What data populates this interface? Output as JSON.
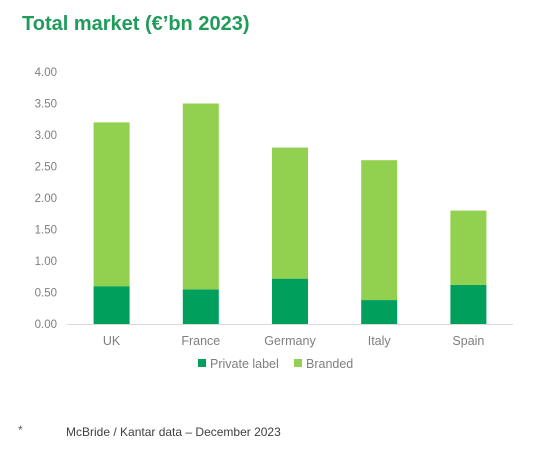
{
  "title": "Total market (€’bn 2023)",
  "colors": {
    "title": "#1f9b5a",
    "private_label": "#00a05c",
    "branded": "#92d050",
    "axis_text": "#7f7f7f",
    "axis_line": "#d9d9d9"
  },
  "chart_data": {
    "type": "bar",
    "stacked": true,
    "categories": [
      "UK",
      "France",
      "Germany",
      "Italy",
      "Spain"
    ],
    "series": [
      {
        "name": "Private label",
        "values": [
          0.6,
          0.55,
          0.72,
          0.38,
          0.62
        ]
      },
      {
        "name": "Branded",
        "values": [
          2.6,
          2.95,
          2.08,
          2.22,
          1.18
        ]
      }
    ],
    "ylim": [
      0,
      4
    ],
    "yticks": [
      "0.00",
      "0.50",
      "1.00",
      "1.50",
      "2.00",
      "2.50",
      "3.00",
      "3.50",
      "4.00"
    ],
    "grid": false,
    "legend": "bottom"
  },
  "footnote": {
    "marker": "*",
    "text": "McBride / Kantar data – December 2023"
  }
}
